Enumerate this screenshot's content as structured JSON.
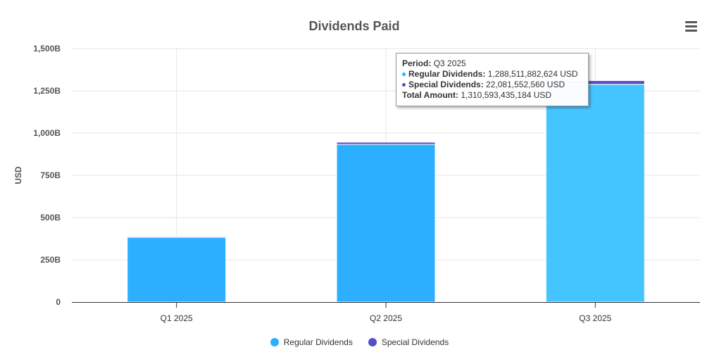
{
  "chart_data": {
    "type": "bar",
    "stacked": true,
    "title": "Dividends Paid",
    "xlabel": "",
    "ylabel": "USD",
    "ylim": [
      0,
      1500000000000
    ],
    "yticks": [
      0,
      250000000000,
      500000000000,
      750000000000,
      1000000000000,
      1250000000000,
      1500000000000
    ],
    "ytick_labels": [
      "0",
      "250B",
      "500B",
      "750B",
      "1,000B",
      "1,250B",
      "1,500B"
    ],
    "categories": [
      "Q1 2025",
      "Q2 2025",
      "Q3 2025"
    ],
    "series": [
      {
        "name": "Regular Dividends",
        "color": "#2caffe",
        "values": [
          383000000000,
          933000000000,
          1288511882624
        ]
      },
      {
        "name": "Special Dividends",
        "color": "#544fc5",
        "values": [
          5000000000,
          13000000000,
          22081552560
        ]
      }
    ],
    "grid": true,
    "legend_position": "bottom-center",
    "highlight_index": 2,
    "highlight_color": "#45c5ff"
  },
  "tooltip": {
    "period_label": "Period:",
    "period_value": "Q3 2025",
    "regular_label": "Regular Dividends:",
    "regular_value": "1,288,511,882,624 USD",
    "special_label": "Special Dividends:",
    "special_value": "22,081,552,560 USD",
    "total_label": "Total Amount:",
    "total_value": "1,310,593,435,184 USD"
  },
  "menu": {
    "icon": "hamburger-menu-icon"
  }
}
